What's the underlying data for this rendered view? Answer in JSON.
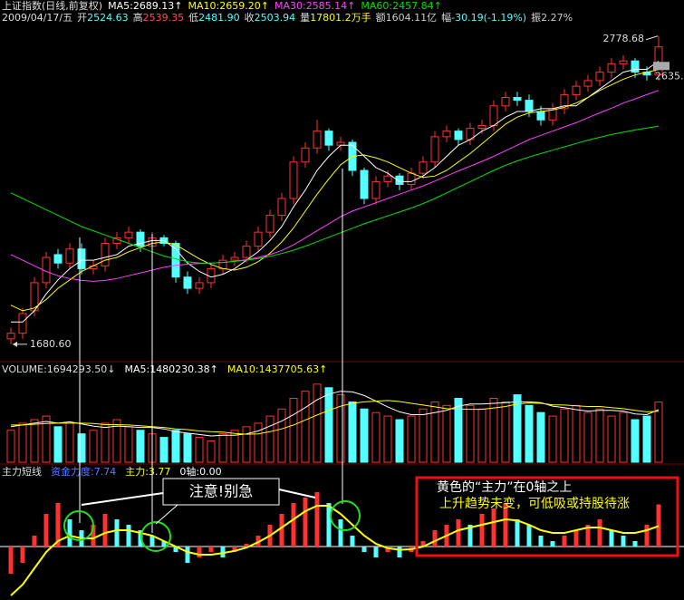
{
  "chart_data": [
    {
      "type": "candlestick",
      "title": "上证指数(日线,前复权)",
      "date": "2009/04/17/五",
      "info": [
        {
          "label": "开",
          "value": "2524.63",
          "color": "#54ffff"
        },
        {
          "label": "高",
          "value": "2539.35",
          "color": "#ff5050"
        },
        {
          "label": "低",
          "value": "2481.90",
          "color": "#54ffff"
        },
        {
          "label": "收",
          "value": "2503.94",
          "color": "#54ffff"
        },
        {
          "label": "量",
          "value": "17801.2万手",
          "color": "#ffff00"
        },
        {
          "label": "额",
          "value": "1604.11亿",
          "color": "#cccccc"
        },
        {
          "label": "幅",
          "value": "-30.19(-1.19%)",
          "color": "#54ffff"
        },
        {
          "label": "振",
          "value": "2.27%",
          "color": "#cccccc"
        }
      ],
      "up_color": "#ff3232",
      "down_color": "#54ffff",
      "open": [
        1700,
        1720,
        1800,
        1900,
        2000,
        1970,
        2020,
        1950,
        1960,
        2040,
        2060,
        2080,
        2030,
        2060,
        2040,
        1920,
        1880,
        1900,
        1950,
        1980,
        1990,
        2030,
        2080,
        2140,
        2200,
        2330,
        2380,
        2440,
        2390,
        2400,
        2300,
        2200,
        2260,
        2280,
        2250,
        2290,
        2330,
        2420,
        2440,
        2410,
        2450,
        2460,
        2530,
        2560,
        2550,
        2510,
        2480,
        2520,
        2570,
        2600,
        2620,
        2650,
        2680,
        2690,
        2650,
        2640
      ],
      "high": [
        1740,
        1810,
        1920,
        2010,
        2020,
        2040,
        2040,
        1980,
        2060,
        2080,
        2100,
        2090,
        2080,
        2070,
        2050,
        1940,
        1920,
        1970,
        2000,
        2010,
        2050,
        2100,
        2160,
        2220,
        2350,
        2400,
        2480,
        2450,
        2420,
        2410,
        2310,
        2280,
        2300,
        2290,
        2310,
        2350,
        2440,
        2460,
        2450,
        2470,
        2480,
        2550,
        2580,
        2580,
        2570,
        2530,
        2540,
        2590,
        2620,
        2640,
        2670,
        2700,
        2710,
        2700,
        2670,
        2778.68
      ],
      "low": [
        1680.6,
        1700,
        1780,
        1880,
        1950,
        1950,
        1930,
        1930,
        1940,
        2020,
        2040,
        2010,
        2010,
        2030,
        1900,
        1860,
        1860,
        1880,
        1930,
        1960,
        1970,
        2010,
        2060,
        2120,
        2180,
        2310,
        2360,
        2370,
        2370,
        2280,
        2180,
        2180,
        2240,
        2230,
        2230,
        2270,
        2310,
        2400,
        2390,
        2390,
        2430,
        2440,
        2510,
        2530,
        2490,
        2460,
        2460,
        2500,
        2550,
        2580,
        2600,
        2630,
        2660,
        2630,
        2620,
        2620
      ],
      "close": [
        1720,
        1790,
        1900,
        1990,
        1970,
        2020,
        1950,
        1960,
        2040,
        2060,
        2080,
        2030,
        2060,
        2040,
        1920,
        1880,
        1900,
        1950,
        1980,
        1990,
        2030,
        2080,
        2140,
        2200,
        2330,
        2380,
        2440,
        2390,
        2400,
        2300,
        2200,
        2260,
        2280,
        2250,
        2290,
        2330,
        2420,
        2440,
        2410,
        2450,
        2460,
        2530,
        2560,
        2550,
        2510,
        2480,
        2520,
        2570,
        2600,
        2620,
        2650,
        2680,
        2690,
        2650,
        2640,
        2740
      ],
      "series": [
        {
          "name": "MA5:2689.13↑",
          "color": "#ffffff",
          "values": [
            1760,
            1760,
            1800,
            1860,
            1910,
            1950,
            1980,
            1980,
            1990,
            2000,
            2030,
            2040,
            2050,
            2050,
            2020,
            1970,
            1940,
            1920,
            1930,
            1950,
            1980,
            2010,
            2050,
            2100,
            2170,
            2230,
            2300,
            2350,
            2390,
            2390,
            2350,
            2310,
            2290,
            2260,
            2260,
            2280,
            2310,
            2350,
            2390,
            2410,
            2440,
            2460,
            2490,
            2510,
            2510,
            2520,
            2520,
            2530,
            2530,
            2560,
            2590,
            2620,
            2650,
            2660,
            2660,
            2689.13
          ]
        },
        {
          "name": "MA10:2659.20↑",
          "color": "#ffff00",
          "values": [
            1820,
            1800,
            1810,
            1840,
            1880,
            1910,
            1940,
            1960,
            1980,
            1990,
            2010,
            2025,
            2040,
            2045,
            2035,
            2010,
            1985,
            1965,
            1950,
            1945,
            1955,
            1975,
            2005,
            2045,
            2095,
            2155,
            2215,
            2270,
            2320,
            2350,
            2355,
            2345,
            2330,
            2310,
            2290,
            2275,
            2280,
            2300,
            2330,
            2360,
            2395,
            2430,
            2465,
            2490,
            2505,
            2510,
            2515,
            2525,
            2540,
            2560,
            2585,
            2605,
            2625,
            2640,
            2650,
            2659.2
          ]
        },
        {
          "name": "MA30:2585.14↑",
          "color": "#ff40ff",
          "values": [
            2000,
            1980,
            1960,
            1940,
            1925,
            1915,
            1908,
            1905,
            1908,
            1915,
            1925,
            1935,
            1945,
            1955,
            1962,
            1966,
            1968,
            1970,
            1972,
            1976,
            1982,
            1990,
            2000,
            2015,
            2035,
            2060,
            2085,
            2110,
            2135,
            2155,
            2170,
            2185,
            2200,
            2215,
            2230,
            2245,
            2262,
            2280,
            2298,
            2315,
            2332,
            2350,
            2370,
            2390,
            2410,
            2425,
            2440,
            2455,
            2470,
            2488,
            2505,
            2522,
            2540,
            2555,
            2570,
            2585.14
          ]
        },
        {
          "name": "MA60:2457.84↑",
          "color": "#00e000",
          "values": [
            2220,
            2200,
            2180,
            2160,
            2140,
            2120,
            2100,
            2085,
            2070,
            2055,
            2040,
            2025,
            2010,
            1995,
            1985,
            1975,
            1970,
            1970,
            1972,
            1976,
            1980,
            1986,
            1994,
            2004,
            2016,
            2030,
            2046,
            2062,
            2078,
            2094,
            2110,
            2124,
            2138,
            2152,
            2166,
            2182,
            2200,
            2220,
            2240,
            2260,
            2280,
            2300,
            2318,
            2334,
            2348,
            2360,
            2372,
            2384,
            2396,
            2408,
            2418,
            2428,
            2436,
            2444,
            2451,
            2457.84
          ]
        }
      ],
      "annotations": [
        {
          "text": "2778.68",
          "x": 55,
          "y": 2778.68
        },
        {
          "text": "1680.60",
          "x": 0,
          "y": 1680.6
        },
        {
          "text": "2635.",
          "y": 2635
        }
      ],
      "ylim": [
        1622,
        2849
      ]
    },
    {
      "type": "bar",
      "title": "VOLUME:1694293.50↓",
      "values": [
        900000,
        1100000,
        1200000,
        1300000,
        1000000,
        1100000,
        800000,
        900000,
        1100000,
        1200000,
        1000000,
        900000,
        800000,
        700000,
        900000,
        800000,
        700000,
        600000,
        800000,
        900000,
        1000000,
        1100000,
        1300000,
        1500000,
        1800000,
        2000000,
        2200000,
        2100000,
        1900000,
        1700000,
        1500000,
        1400000,
        1300000,
        1200000,
        1300000,
        1500000,
        1700000,
        1600000,
        1800000,
        1600000,
        1500000,
        1800000,
        1700000,
        1900000,
        1600000,
        1400000,
        1300000,
        1500000,
        1600000,
        1400000,
        1500000,
        1300000,
        1400000,
        1200000,
        1300000,
        1694293.5
      ],
      "series": [
        {
          "name": "MA5:1480230.38↑",
          "color": "#ffffff",
          "values": [
            1000000,
            1050000,
            1100000,
            1150000,
            1100000,
            1140000,
            1080000,
            1020000,
            980000,
            1020000,
            1000000,
            980000,
            980000,
            940000,
            860000,
            820000,
            780000,
            740000,
            760000,
            760000,
            800000,
            880000,
            1020000,
            1160000,
            1340000,
            1540000,
            1760000,
            1920000,
            2000000,
            1980000,
            1880000,
            1720000,
            1560000,
            1420000,
            1340000,
            1340000,
            1400000,
            1460000,
            1580000,
            1640000,
            1640000,
            1660000,
            1680000,
            1700000,
            1700000,
            1680000,
            1580000,
            1540000,
            1480000,
            1440000,
            1460000,
            1460000,
            1440000,
            1360000,
            1340000,
            1480230.38
          ]
        },
        {
          "name": "MA10:1437705.63↑",
          "color": "#ffff00",
          "values": [
            1050000,
            1050000,
            1070000,
            1090000,
            1100000,
            1100000,
            1100000,
            1090000,
            1060000,
            1060000,
            1050000,
            1030000,
            1000000,
            980000,
            940000,
            920000,
            880000,
            860000,
            850000,
            810000,
            790000,
            800000,
            860000,
            940000,
            1050000,
            1190000,
            1330000,
            1460000,
            1580000,
            1660000,
            1700000,
            1720000,
            1740000,
            1710000,
            1660000,
            1610000,
            1560000,
            1510000,
            1500000,
            1490000,
            1490000,
            1530000,
            1570000,
            1640000,
            1670000,
            1660000,
            1620000,
            1610000,
            1590000,
            1570000,
            1570000,
            1540000,
            1510000,
            1460000,
            1420000,
            1437705.63
          ]
        }
      ],
      "ylim": [
        0,
        2400000
      ]
    },
    {
      "type": "line",
      "title": "主力短线",
      "bar_colors": [
        "#ff3232",
        "#54ffff"
      ],
      "series": [
        {
          "name": "资金力度:7.74",
          "color": "#5a7dff",
          "values": [
            -5,
            -3,
            2,
            6,
            8,
            5,
            3,
            4,
            6,
            5,
            4,
            3,
            2,
            1,
            -1,
            -3,
            -2,
            -1,
            -2,
            -1,
            0.5,
            2,
            4,
            6,
            8,
            9,
            10,
            8,
            5,
            2,
            -1,
            -2,
            -1,
            -2,
            -1,
            1,
            3,
            4,
            5,
            4,
            6,
            7,
            8,
            5,
            4,
            2,
            1,
            2,
            3,
            4,
            5,
            3,
            2,
            1,
            4,
            7.74
          ]
        },
        {
          "name": "主力:3.77",
          "color": "#ffff00",
          "values": [
            -9,
            -7,
            -4,
            -1,
            1,
            2,
            1.5,
            1.5,
            2.5,
            3,
            3,
            2.5,
            2,
            1,
            0,
            -1,
            -1.5,
            -1.5,
            -1.2,
            -0.8,
            -0.2,
            0.8,
            2,
            3.5,
            5,
            6.5,
            7.5,
            7.5,
            6,
            4,
            2,
            0.5,
            -0.3,
            -0.6,
            -0.5,
            0,
            1,
            2,
            3,
            3.5,
            4,
            4.5,
            5,
            4.8,
            4,
            3,
            2.5,
            2.5,
            3,
            3.5,
            3.5,
            3,
            2.5,
            2.5,
            3,
            3.77
          ]
        }
      ],
      "zero_line": {
        "name": "0轴:0.00",
        "value": 0
      },
      "notes": [
        "注意!别急",
        "黄色的“主力”在0轴之上",
        "上升趋势未变，可低吸或持股待涨"
      ],
      "ylim": [
        -9.5,
        13
      ]
    }
  ]
}
